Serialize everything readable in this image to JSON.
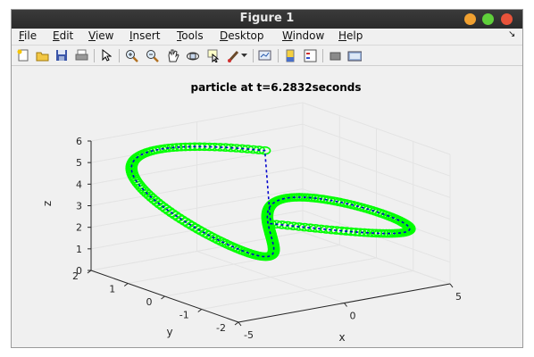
{
  "window": {
    "title": "Figure 1"
  },
  "menu": {
    "items": [
      {
        "key": "F",
        "rest": "ile"
      },
      {
        "key": "E",
        "rest": "dit"
      },
      {
        "key": "V",
        "rest": "iew"
      },
      {
        "key": "I",
        "rest": "nsert"
      },
      {
        "key": "T",
        "rest": "ools"
      },
      {
        "key": "D",
        "rest": "esktop"
      },
      {
        "key": "W",
        "rest": "indow"
      },
      {
        "key": "H",
        "rest": "elp"
      }
    ],
    "dock_arrow": "↘"
  },
  "toolbar": {
    "icons": [
      "new-figure-icon",
      "open-file-icon",
      "save-icon",
      "print-icon",
      "pointer-icon",
      "zoom-in-icon",
      "zoom-out-icon",
      "pan-icon",
      "rotate-3d-icon",
      "data-cursor-icon",
      "brush-icon",
      "dropdown-arrow-icon",
      "link-plot-icon",
      "colorbar-icon",
      "legend-icon",
      "hide-plot-tools-icon",
      "show-plot-tools-icon"
    ]
  },
  "chart_data": {
    "type": "line3d",
    "title": "particle at t=6.2832seconds",
    "xlabel": "x",
    "ylabel": "y",
    "zlabel": "z",
    "xlim": [
      -5,
      5
    ],
    "ylim": [
      -2,
      2
    ],
    "zlim": [
      0,
      6
    ],
    "x_ticks": [
      "-5",
      "0",
      "5"
    ],
    "y_ticks": [
      "-2",
      "-1",
      "0",
      "1",
      "2"
    ],
    "z_ticks": [
      "0",
      "1",
      "2",
      "3",
      "4",
      "5",
      "6"
    ],
    "grid": true,
    "series": [
      {
        "style": "green circles",
        "color": "#00ff00"
      },
      {
        "style": "blue dashed",
        "color": "#0000cc"
      }
    ]
  }
}
